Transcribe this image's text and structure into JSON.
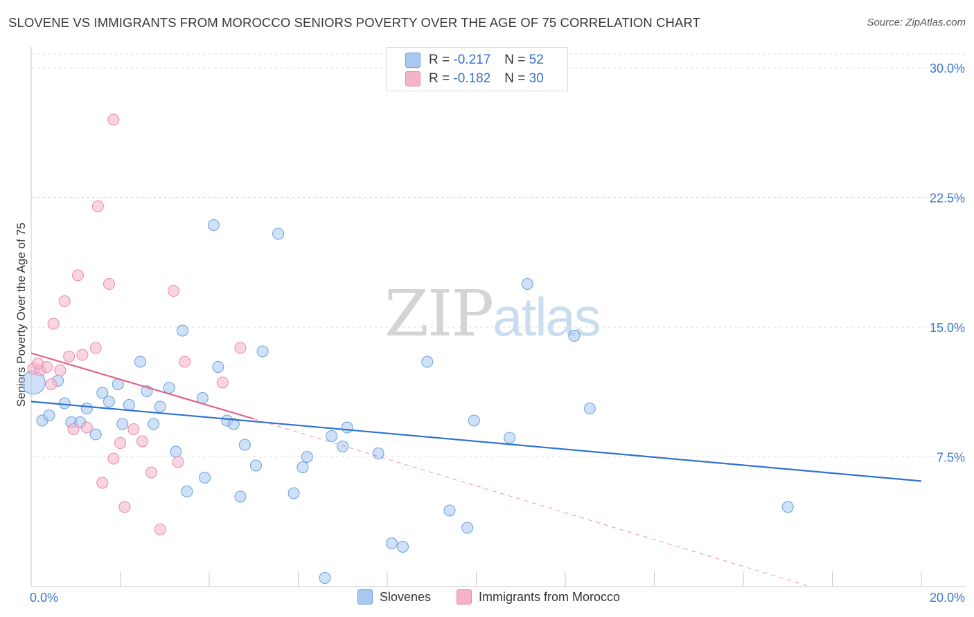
{
  "title": "SLOVENE VS IMMIGRANTS FROM MOROCCO SENIORS POVERTY OVER THE AGE OF 75 CORRELATION CHART",
  "source": "Source: ZipAtlas.com",
  "watermark": {
    "zip": "ZIP",
    "atlas": "atlas"
  },
  "legend": {
    "rows": [
      {
        "r_label": "R =",
        "r_value": "-0.217",
        "n_label": "N =",
        "n_value": "52",
        "color": "#a8c8f0"
      },
      {
        "r_label": "R =",
        "r_value": "-0.182",
        "n_label": "N =",
        "n_value": "30",
        "color": "#f5b3c8"
      }
    ]
  },
  "bottom_legend": [
    {
      "label": "Slovenes",
      "color": "#a8c8f0"
    },
    {
      "label": "Immigrants from Morocco",
      "color": "#f5b3c8"
    }
  ],
  "chart_data": {
    "type": "scatter",
    "xlabel": "",
    "ylabel": "Seniors Poverty Over the Age of 75",
    "xlim": [
      0,
      20
    ],
    "ylim": [
      0,
      30.8
    ],
    "x_tick_labels": [
      "0.0%",
      "20.0%"
    ],
    "y_ticks": [
      7.5,
      15.0,
      22.5,
      30.0
    ],
    "y_tick_labels": [
      "7.5%",
      "15.0%",
      "22.5%",
      "30.0%"
    ],
    "grid": true,
    "series": [
      {
        "name": "Slovenes",
        "color": "#a8c8f0",
        "stroke": "#6a9ee0",
        "trend_color": "#2f72d0",
        "trend": {
          "x0": 0,
          "y0": 10.7,
          "x1": 20,
          "y1": 6.1
        },
        "points": [
          [
            0.05,
            11.8
          ],
          [
            0.25,
            9.6
          ],
          [
            0.4,
            9.9
          ],
          [
            0.6,
            11.9
          ],
          [
            0.75,
            10.6
          ],
          [
            0.9,
            9.5
          ],
          [
            1.1,
            9.5
          ],
          [
            1.25,
            10.3
          ],
          [
            1.45,
            8.8
          ],
          [
            1.6,
            11.2
          ],
          [
            1.75,
            10.7
          ],
          [
            1.95,
            11.7
          ],
          [
            2.05,
            9.4
          ],
          [
            2.2,
            10.5
          ],
          [
            2.45,
            13.0
          ],
          [
            2.6,
            11.3
          ],
          [
            2.75,
            9.4
          ],
          [
            2.9,
            10.4
          ],
          [
            3.1,
            11.5
          ],
          [
            3.25,
            7.8
          ],
          [
            3.4,
            14.8
          ],
          [
            3.5,
            5.5
          ],
          [
            3.85,
            10.9
          ],
          [
            3.9,
            6.3
          ],
          [
            4.1,
            20.9
          ],
          [
            4.2,
            12.7
          ],
          [
            4.4,
            9.6
          ],
          [
            4.55,
            9.4
          ],
          [
            4.7,
            5.2
          ],
          [
            4.8,
            8.2
          ],
          [
            5.05,
            7.0
          ],
          [
            5.2,
            13.6
          ],
          [
            5.55,
            20.4
          ],
          [
            5.9,
            5.4
          ],
          [
            6.1,
            6.9
          ],
          [
            6.2,
            7.5
          ],
          [
            6.6,
            0.5
          ],
          [
            6.75,
            8.7
          ],
          [
            7.0,
            8.1
          ],
          [
            7.1,
            9.2
          ],
          [
            7.8,
            7.7
          ],
          [
            8.1,
            2.5
          ],
          [
            8.35,
            2.3
          ],
          [
            8.9,
            13.0
          ],
          [
            9.4,
            4.4
          ],
          [
            9.8,
            3.4
          ],
          [
            9.95,
            9.6
          ],
          [
            10.75,
            8.6
          ],
          [
            11.15,
            17.5
          ],
          [
            12.2,
            14.5
          ],
          [
            12.55,
            10.3
          ],
          [
            17.0,
            4.6
          ]
        ]
      },
      {
        "name": "Immigrants from Morocco",
        "color": "#f5b3c8",
        "stroke": "#e88aa8",
        "trend_color": "#e06090",
        "trend": {
          "x0": 0,
          "y0": 13.5,
          "x1": 5.0,
          "y1": 9.7,
          "dash_to_x": 17.5,
          "dash_to_y": 0.0
        },
        "points": [
          [
            0.05,
            12.6
          ],
          [
            0.2,
            12.5
          ],
          [
            0.35,
            12.7
          ],
          [
            0.45,
            11.7
          ],
          [
            0.5,
            15.2
          ],
          [
            0.65,
            12.5
          ],
          [
            0.75,
            16.5
          ],
          [
            0.85,
            13.3
          ],
          [
            0.95,
            9.1
          ],
          [
            1.05,
            18.0
          ],
          [
            1.15,
            13.4
          ],
          [
            1.25,
            9.2
          ],
          [
            1.45,
            13.8
          ],
          [
            1.5,
            22.0
          ],
          [
            1.6,
            6.0
          ],
          [
            1.75,
            17.5
          ],
          [
            1.85,
            7.4
          ],
          [
            1.85,
            27.0
          ],
          [
            2.0,
            8.3
          ],
          [
            2.1,
            4.6
          ],
          [
            2.3,
            9.1
          ],
          [
            2.5,
            8.4
          ],
          [
            2.7,
            6.6
          ],
          [
            2.9,
            3.3
          ],
          [
            3.2,
            17.1
          ],
          [
            3.3,
            7.2
          ],
          [
            3.45,
            13.0
          ],
          [
            4.3,
            11.8
          ],
          [
            4.7,
            13.8
          ],
          [
            0.15,
            12.9
          ]
        ]
      }
    ]
  }
}
